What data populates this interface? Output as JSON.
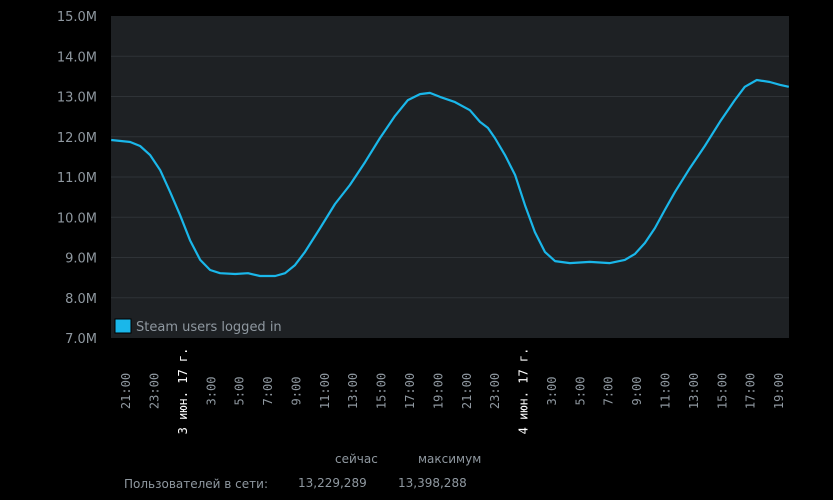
{
  "chart_data": {
    "type": "line",
    "title": "",
    "xlabel": "",
    "ylabel": "",
    "legend": {
      "position": "bottom-left",
      "entries": [
        "Steam users logged in"
      ]
    },
    "grid": true,
    "ylim": [
      7.0,
      15.0
    ],
    "y_ticks": [
      "7.0M",
      "8.0M",
      "9.0M",
      "10.0M",
      "11.0M",
      "12.0M",
      "13.0M",
      "14.0M",
      "15.0M"
    ],
    "y_tick_values": [
      7,
      8,
      9,
      10,
      11,
      12,
      13,
      14,
      15
    ],
    "xlim": [
      "2017-06-02T19:56",
      "2017-06-04T19:42"
    ],
    "x_ticks": [
      {
        "t": "2017-06-02T21:00",
        "label": "21:00",
        "day": false
      },
      {
        "t": "2017-06-02T23:00",
        "label": "23:00",
        "day": false
      },
      {
        "t": "2017-06-03T01:00",
        "label": "3 июн. 17 г.",
        "day": true
      },
      {
        "t": "2017-06-03T03:00",
        "label": "3:00",
        "day": false
      },
      {
        "t": "2017-06-03T05:00",
        "label": "5:00",
        "day": false
      },
      {
        "t": "2017-06-03T07:00",
        "label": "7:00",
        "day": false
      },
      {
        "t": "2017-06-03T09:00",
        "label": "9:00",
        "day": false
      },
      {
        "t": "2017-06-03T11:00",
        "label": "11:00",
        "day": false
      },
      {
        "t": "2017-06-03T13:00",
        "label": "13:00",
        "day": false
      },
      {
        "t": "2017-06-03T15:00",
        "label": "15:00",
        "day": false
      },
      {
        "t": "2017-06-03T17:00",
        "label": "17:00",
        "day": false
      },
      {
        "t": "2017-06-03T19:00",
        "label": "19:00",
        "day": false
      },
      {
        "t": "2017-06-03T21:00",
        "label": "21:00",
        "day": false
      },
      {
        "t": "2017-06-03T23:00",
        "label": "23:00",
        "day": false
      },
      {
        "t": "2017-06-04T01:00",
        "label": "4 июн. 17 г.",
        "day": true
      },
      {
        "t": "2017-06-04T03:00",
        "label": "3:00",
        "day": false
      },
      {
        "t": "2017-06-04T05:00",
        "label": "5:00",
        "day": false
      },
      {
        "t": "2017-06-04T07:00",
        "label": "7:00",
        "day": false
      },
      {
        "t": "2017-06-04T09:00",
        "label": "9:00",
        "day": false
      },
      {
        "t": "2017-06-04T11:00",
        "label": "11:00",
        "day": false
      },
      {
        "t": "2017-06-04T13:00",
        "label": "13:00",
        "day": false
      },
      {
        "t": "2017-06-04T15:00",
        "label": "15:00",
        "day": false
      },
      {
        "t": "2017-06-04T17:00",
        "label": "17:00",
        "day": false
      },
      {
        "t": "2017-06-04T19:00",
        "label": "19:00",
        "day": false
      }
    ],
    "series": [
      {
        "name": "Steam users logged in",
        "unit": "M",
        "color": "#1ab7ea",
        "points": [
          [
            "2017-06-02T19:57",
            11.92
          ],
          [
            "2017-06-02T21:17",
            11.87
          ],
          [
            "2017-06-02T21:59",
            11.77
          ],
          [
            "2017-06-02T22:41",
            11.55
          ],
          [
            "2017-06-02T23:24",
            11.17
          ],
          [
            "2017-06-03T00:06",
            10.63
          ],
          [
            "2017-06-03T00:48",
            10.05
          ],
          [
            "2017-06-03T01:30",
            9.43
          ],
          [
            "2017-06-03T02:13",
            8.94
          ],
          [
            "2017-06-03T02:55",
            8.69
          ],
          [
            "2017-06-03T03:37",
            8.61
          ],
          [
            "2017-06-03T04:41",
            8.59
          ],
          [
            "2017-06-03T05:35",
            8.61
          ],
          [
            "2017-06-03T06:26",
            8.54
          ],
          [
            "2017-06-03T07:30",
            8.54
          ],
          [
            "2017-06-03T08:12",
            8.61
          ],
          [
            "2017-06-03T08:54",
            8.81
          ],
          [
            "2017-06-03T09:36",
            9.14
          ],
          [
            "2017-06-03T10:40",
            9.73
          ],
          [
            "2017-06-03T11:43",
            10.33
          ],
          [
            "2017-06-03T12:46",
            10.8
          ],
          [
            "2017-06-03T13:50",
            11.37
          ],
          [
            "2017-06-03T14:53",
            11.97
          ],
          [
            "2017-06-03T15:57",
            12.52
          ],
          [
            "2017-06-03T16:51",
            12.91
          ],
          [
            "2017-06-03T17:42",
            13.06
          ],
          [
            "2017-06-03T18:24",
            13.09
          ],
          [
            "2017-06-03T19:07",
            12.99
          ],
          [
            "2017-06-03T20:10",
            12.86
          ],
          [
            "2017-06-03T21:13",
            12.66
          ],
          [
            "2017-06-03T21:56",
            12.37
          ],
          [
            "2017-06-03T22:29",
            12.22
          ],
          [
            "2017-06-03T22:59",
            11.97
          ],
          [
            "2017-06-03T23:41",
            11.55
          ],
          [
            "2017-06-04T00:24",
            11.05
          ],
          [
            "2017-06-04T01:06",
            10.3
          ],
          [
            "2017-06-04T01:48",
            9.63
          ],
          [
            "2017-06-04T02:30",
            9.14
          ],
          [
            "2017-06-04T03:13",
            8.91
          ],
          [
            "2017-06-04T04:16",
            8.86
          ],
          [
            "2017-06-04T05:40",
            8.89
          ],
          [
            "2017-06-04T07:05",
            8.86
          ],
          [
            "2017-06-04T08:08",
            8.94
          ],
          [
            "2017-06-04T08:51",
            9.09
          ],
          [
            "2017-06-04T09:33",
            9.36
          ],
          [
            "2017-06-04T10:15",
            9.73
          ],
          [
            "2017-06-04T10:57",
            10.18
          ],
          [
            "2017-06-04T11:40",
            10.63
          ],
          [
            "2017-06-04T12:43",
            11.22
          ],
          [
            "2017-06-04T13:46",
            11.77
          ],
          [
            "2017-06-04T14:50",
            12.37
          ],
          [
            "2017-06-04T15:53",
            12.91
          ],
          [
            "2017-06-04T16:35",
            13.24
          ],
          [
            "2017-06-04T17:26",
            13.41
          ],
          [
            "2017-06-04T18:21",
            13.36
          ],
          [
            "2017-06-04T19:03",
            13.29
          ],
          [
            "2017-06-04T19:41",
            13.24
          ]
        ]
      }
    ],
    "colors": {
      "background": "#000000",
      "plot_background": "#1e2124",
      "grid": "#2f3337",
      "axis_label": "#8f98a0",
      "day_label": "#ffffff",
      "stat_value": "#3aa9e0"
    }
  },
  "stats": {
    "now_header": "сейчас",
    "max_header": "максимум",
    "row_label": "Пользователей в сети:",
    "now_value": "13,229,289",
    "max_value": "13,398,288"
  }
}
